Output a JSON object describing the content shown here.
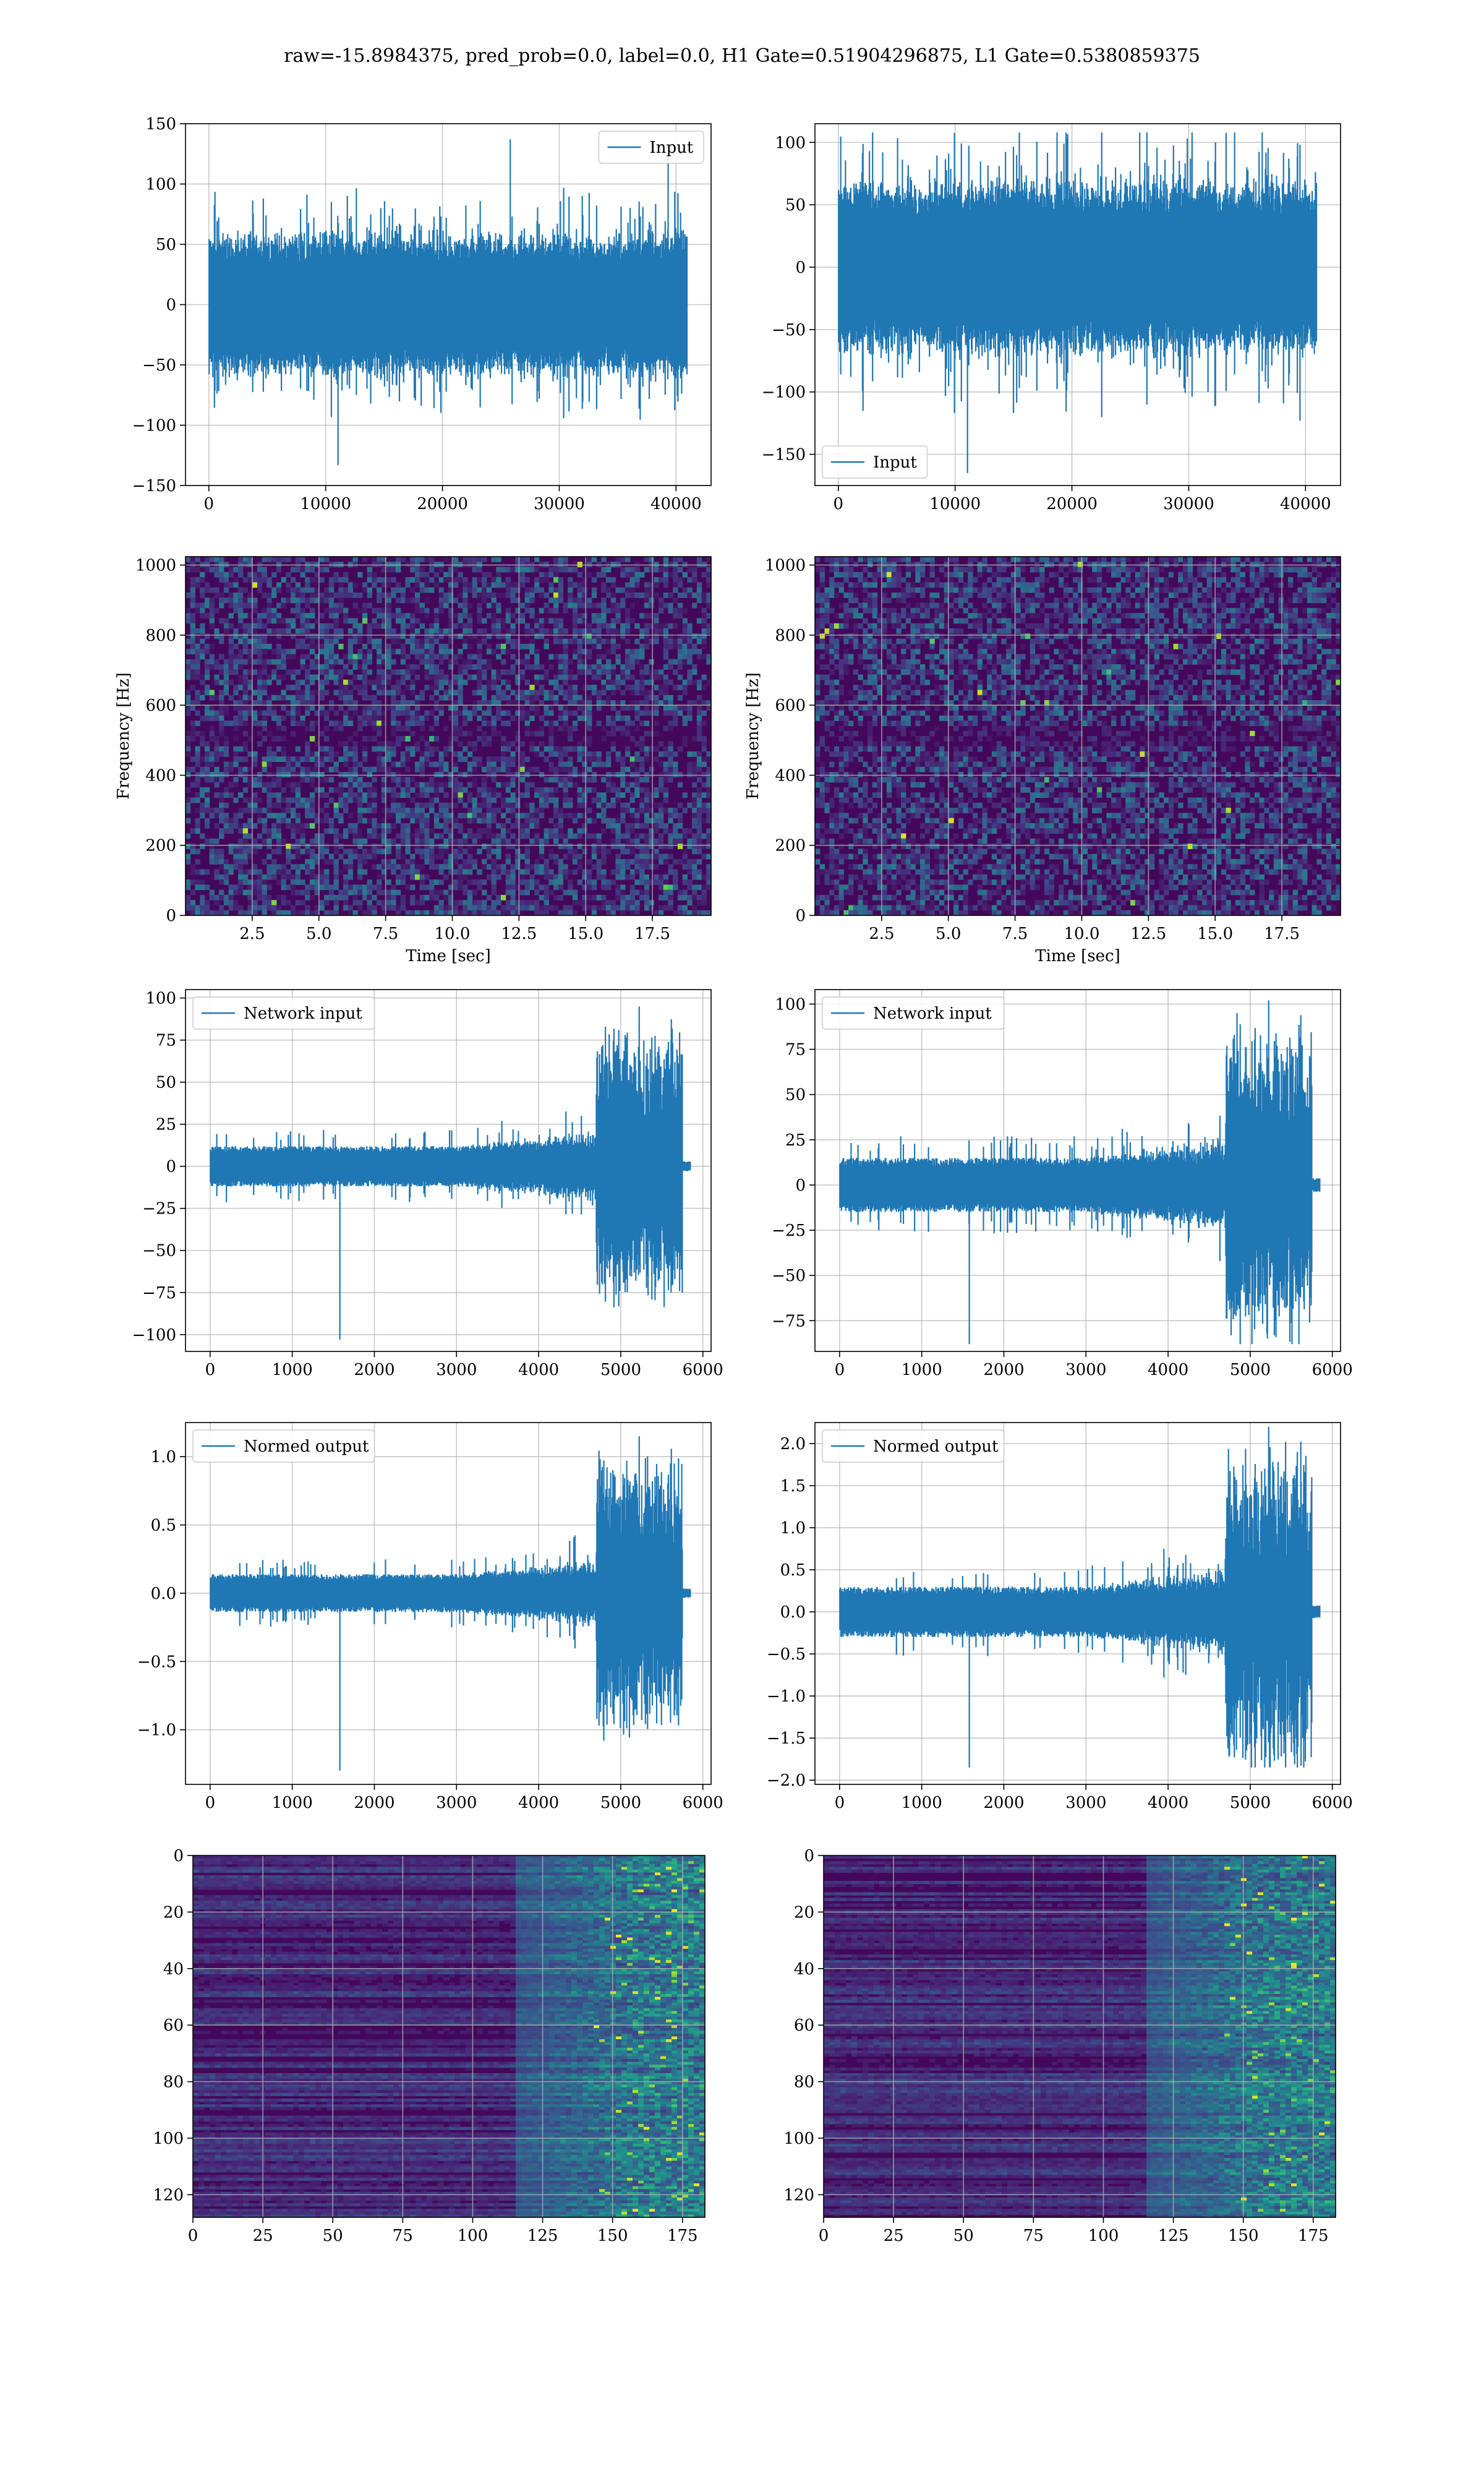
{
  "figure": {
    "title": "raw=-15.8984375, pred_prob=0.0, label=0.0, H1 Gate=0.51904296875, L1 Gate=0.5380859375",
    "line_color": "#1f77b4",
    "grid_color": "#b0b0b0"
  },
  "chart_data": [
    {
      "id": "input-left",
      "type": "line",
      "xlim": [
        -2000,
        43000
      ],
      "ylim": [
        -150,
        150
      ],
      "xticks": [
        0,
        10000,
        20000,
        30000,
        40000
      ],
      "yticks": [
        -150,
        -100,
        -50,
        0,
        50,
        100,
        150
      ],
      "series": [
        {
          "name": "Input",
          "n_samples": 40960,
          "core_amplitude": 55,
          "peak_max": 137,
          "peak_min": -133
        }
      ],
      "legend": "top-right",
      "grid": true
    },
    {
      "id": "input-right",
      "type": "line",
      "xlim": [
        -2000,
        43000
      ],
      "ylim": [
        -175,
        115
      ],
      "xticks": [
        0,
        10000,
        20000,
        30000,
        40000
      ],
      "yticks": [
        -150,
        -100,
        -50,
        0,
        50,
        100
      ],
      "series": [
        {
          "name": "Input",
          "n_samples": 40960,
          "core_amplitude": 65,
          "peak_max": 108,
          "peak_min": -165
        }
      ],
      "legend": "bottom-left",
      "grid": true
    },
    {
      "id": "spectrogram-left",
      "type": "heatmap",
      "xlim": [
        0,
        19.7
      ],
      "ylim": [
        0,
        1024
      ],
      "xticks": [
        2.5,
        5.0,
        7.5,
        10.0,
        12.5,
        15.0,
        17.5
      ],
      "yticks": [
        0,
        200,
        400,
        600,
        800,
        1000
      ],
      "xlabel": "Time [sec]",
      "ylabel": "Frequency [Hz]",
      "colormap": "viridis",
      "grid": true
    },
    {
      "id": "spectrogram-right",
      "type": "heatmap",
      "xlim": [
        0,
        19.7
      ],
      "ylim": [
        0,
        1024
      ],
      "xticks": [
        2.5,
        5.0,
        7.5,
        10.0,
        12.5,
        15.0,
        17.5
      ],
      "yticks": [
        0,
        200,
        400,
        600,
        800,
        1000
      ],
      "xlabel": "Time [sec]",
      "ylabel": "Frequency [Hz]",
      "colormap": "viridis",
      "grid": true
    },
    {
      "id": "network-left",
      "type": "line",
      "xlim": [
        -300,
        6100
      ],
      "ylim": [
        -110,
        105
      ],
      "xticks": [
        0,
        1000,
        2000,
        3000,
        4000,
        5000,
        6000
      ],
      "yticks": [
        -100,
        -75,
        -50,
        -25,
        0,
        25,
        50,
        75,
        100
      ],
      "series": [
        {
          "name": "Network input",
          "n_samples": 5850,
          "base_amplitude": 12,
          "burst_start": 4700,
          "burst_end": 5750,
          "peak_max": 95,
          "peak_min": -103
        }
      ],
      "legend": "top-left",
      "grid": true
    },
    {
      "id": "network-right",
      "type": "line",
      "xlim": [
        -300,
        6100
      ],
      "ylim": [
        -92,
        108
      ],
      "xticks": [
        0,
        1000,
        2000,
        3000,
        4000,
        5000,
        6000
      ],
      "yticks": [
        -75,
        -50,
        -25,
        0,
        25,
        50,
        75,
        100
      ],
      "series": [
        {
          "name": "Network input",
          "n_samples": 5850,
          "base_amplitude": 15,
          "burst_start": 4700,
          "burst_end": 5750,
          "peak_max": 102,
          "peak_min": -88
        }
      ],
      "legend": "top-left",
      "grid": true
    },
    {
      "id": "normed-left",
      "type": "line",
      "xlim": [
        -300,
        6100
      ],
      "ylim": [
        -1.4,
        1.25
      ],
      "xticks": [
        0,
        1000,
        2000,
        3000,
        4000,
        5000,
        6000
      ],
      "yticks": [
        -1.0,
        -0.5,
        0.0,
        0.5,
        1.0
      ],
      "series": [
        {
          "name": "Normed output",
          "n_samples": 5850,
          "base_amplitude": 0.14,
          "burst_start": 4700,
          "burst_end": 5750,
          "peak_max": 1.15,
          "peak_min": -1.3
        }
      ],
      "legend": "top-left",
      "grid": true
    },
    {
      "id": "normed-right",
      "type": "line",
      "xlim": [
        -300,
        6100
      ],
      "ylim": [
        -2.05,
        2.25
      ],
      "xticks": [
        0,
        1000,
        2000,
        3000,
        4000,
        5000,
        6000
      ],
      "yticks": [
        -2.0,
        -1.5,
        -1.0,
        -0.5,
        0.0,
        0.5,
        1.0,
        1.5,
        2.0
      ],
      "series": [
        {
          "name": "Normed output",
          "n_samples": 5850,
          "base_amplitude": 0.3,
          "burst_start": 4700,
          "burst_end": 5750,
          "peak_max": 2.2,
          "peak_min": -1.85
        }
      ],
      "legend": "top-left",
      "grid": true
    },
    {
      "id": "features-left",
      "type": "heatmap",
      "xlim": [
        0,
        183
      ],
      "ylim": [
        128,
        0
      ],
      "xticks": [
        0,
        25,
        50,
        75,
        100,
        125,
        150,
        175
      ],
      "yticks": [
        0,
        20,
        40,
        60,
        80,
        100,
        120
      ],
      "colormap": "viridis",
      "grid": true
    },
    {
      "id": "features-right",
      "type": "heatmap",
      "xlim": [
        0,
        183
      ],
      "ylim": [
        128,
        0
      ],
      "xticks": [
        0,
        25,
        50,
        75,
        100,
        125,
        150,
        175
      ],
      "yticks": [
        0,
        20,
        40,
        60,
        80,
        100,
        120
      ],
      "colormap": "viridis",
      "grid": true
    }
  ]
}
